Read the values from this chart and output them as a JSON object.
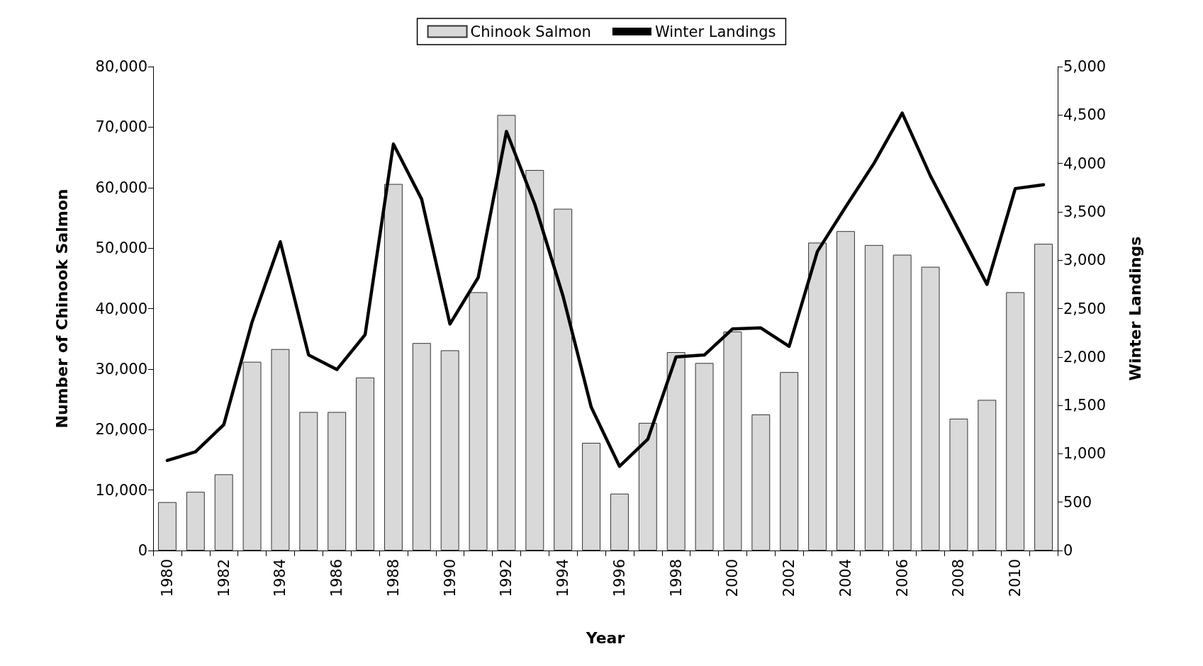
{
  "chart_data": {
    "type": "bar",
    "xlabel": "Year",
    "ylabel": "Number of Chinook Salmon",
    "y2label": "Winter Landings",
    "categories": [
      "1980",
      null,
      "1982",
      null,
      "1984",
      null,
      "1986",
      null,
      "1988",
      null,
      "1990",
      null,
      "1992",
      null,
      "1994",
      null,
      "1996",
      null,
      "1998",
      null,
      "2000",
      null,
      "2002",
      null,
      "2004",
      null,
      "2006",
      null,
      "2008",
      null,
      "2010",
      null
    ],
    "series": [
      {
        "name": "Chinook Salmon",
        "color": "#d9d9d9",
        "values": [
          8000,
          9700,
          12600,
          31200,
          33300,
          22900,
          22900,
          28600,
          60600,
          34300,
          33100,
          42700,
          72000,
          62900,
          56500,
          17800,
          9400,
          21100,
          32800,
          31000,
          36200,
          22500,
          29500,
          50900,
          52800,
          50500,
          48900,
          46900,
          21800,
          24900,
          42700,
          50700
        ]
      },
      {
        "name": "Winter Landings",
        "type": "line",
        "axis": "y2",
        "color": "#000000",
        "marker": "none",
        "line_style": "solid",
        "values": [
          930,
          1020,
          1300,
          2360,
          3190,
          2020,
          1870,
          2230,
          4200,
          3630,
          2340,
          2820,
          4330,
          3580,
          2630,
          1480,
          870,
          1150,
          2000,
          2020,
          2290,
          2300,
          2110,
          3090,
          3550,
          4000,
          4520,
          3870,
          3310,
          2750,
          3740,
          3780
        ]
      }
    ],
    "ylim": [
      0,
      80000
    ],
    "yticks": [
      {
        "value": 0,
        "label": "0"
      },
      {
        "value": 10000,
        "label": "10,000"
      },
      {
        "value": 20000,
        "label": "20,000"
      },
      {
        "value": 30000,
        "label": "30,000"
      },
      {
        "value": 40000,
        "label": "40,000"
      },
      {
        "value": 50000,
        "label": "50,000"
      },
      {
        "value": 60000,
        "label": "60,000"
      },
      {
        "value": 70000,
        "label": "70,000"
      },
      {
        "value": 80000,
        "label": "80,000"
      }
    ],
    "y2lim": [
      0,
      5000
    ],
    "y2ticks": [
      {
        "value": 0,
        "label": "0"
      },
      {
        "value": 500,
        "label": "500"
      },
      {
        "value": 1000,
        "label": "1,000"
      },
      {
        "value": 1500,
        "label": "1,500"
      },
      {
        "value": 2000,
        "label": "2,000"
      },
      {
        "value": 2500,
        "label": "2,500"
      },
      {
        "value": 3000,
        "label": "3,000"
      },
      {
        "value": 3500,
        "label": "3,500"
      },
      {
        "value": 4000,
        "label": "4,000"
      },
      {
        "value": 4500,
        "label": "4,500"
      },
      {
        "value": 5000,
        "label": "5,000"
      }
    ],
    "grid": false,
    "legend": "top"
  }
}
